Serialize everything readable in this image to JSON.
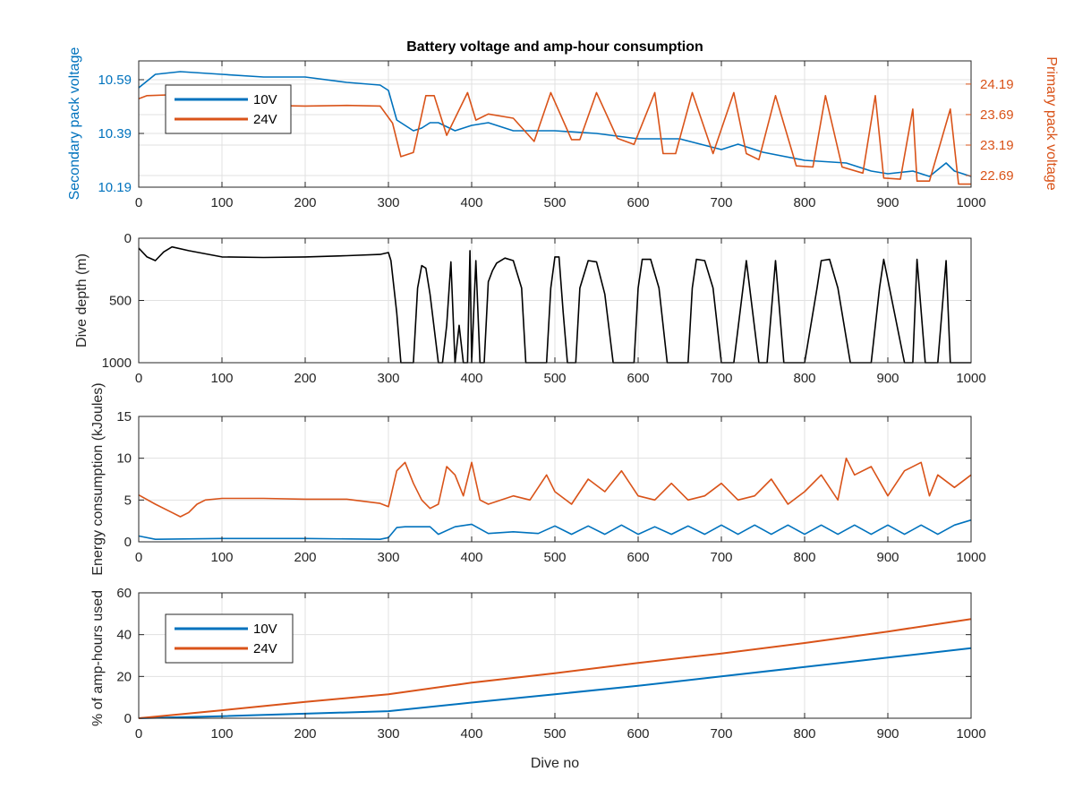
{
  "figure": {
    "title": "Battery voltage and amp-hour consumption",
    "colors": {
      "blue": "#0072BD",
      "orange": "#D95319",
      "black": "#000000",
      "grid": "#e1e1e1",
      "axis": "#262626"
    }
  },
  "chart_data": [
    {
      "id": "voltage",
      "type": "line",
      "title": "Battery voltage and amp-hour consumption",
      "xlabel": "",
      "ylabel": "Secondary pack voltage",
      "ylabel_right": "Primary pack voltage",
      "xlim": [
        0,
        1000
      ],
      "ylim": [
        10.19,
        10.66
      ],
      "ylim_right": [
        22.5,
        24.57
      ],
      "xticks": [
        "0",
        "100",
        "200",
        "300",
        "400",
        "500",
        "600",
        "700",
        "800",
        "900",
        "1000"
      ],
      "yticks": [
        "10.19",
        "10.39",
        "10.59"
      ],
      "yticks_right": [
        "22.69",
        "23.19",
        "23.69",
        "24.19"
      ],
      "grid": true,
      "legend": {
        "placement": "top-left",
        "entries": [
          "10V",
          "24V"
        ]
      },
      "series": [
        {
          "name": "10V",
          "axis": "left",
          "color": "#0072BD",
          "x": [
            0,
            20,
            50,
            100,
            150,
            200,
            250,
            290,
            300,
            310,
            320,
            330,
            340,
            350,
            360,
            380,
            400,
            420,
            450,
            500,
            550,
            600,
            650,
            700,
            720,
            750,
            800,
            850,
            880,
            900,
            930,
            950,
            970,
            980,
            1000
          ],
          "y": [
            10.56,
            10.61,
            10.62,
            10.61,
            10.6,
            10.6,
            10.58,
            10.57,
            10.55,
            10.44,
            10.42,
            10.4,
            10.41,
            10.43,
            10.43,
            10.4,
            10.42,
            10.43,
            10.4,
            10.4,
            10.39,
            10.37,
            10.37,
            10.33,
            10.35,
            10.32,
            10.29,
            10.28,
            10.25,
            10.24,
            10.25,
            10.23,
            10.28,
            10.25,
            10.23
          ]
        },
        {
          "name": "24V",
          "axis": "right",
          "color": "#D95319",
          "x": [
            0,
            10,
            50,
            100,
            150,
            200,
            250,
            290,
            305,
            315,
            330,
            345,
            355,
            370,
            395,
            405,
            420,
            450,
            475,
            495,
            520,
            530,
            550,
            575,
            595,
            620,
            630,
            645,
            665,
            690,
            715,
            730,
            745,
            765,
            790,
            810,
            825,
            845,
            870,
            885,
            895,
            915,
            930,
            935,
            950,
            975,
            985,
            990,
            1000
          ],
          "y": [
            23.95,
            24.0,
            24.02,
            23.85,
            23.84,
            23.83,
            23.84,
            23.83,
            23.55,
            23.0,
            23.07,
            24.0,
            24.0,
            23.35,
            24.05,
            23.6,
            23.7,
            23.63,
            23.25,
            24.05,
            23.28,
            23.28,
            24.05,
            23.3,
            23.2,
            24.05,
            23.05,
            23.05,
            24.05,
            23.05,
            24.05,
            23.05,
            22.95,
            24.0,
            22.85,
            22.83,
            24.0,
            22.83,
            22.73,
            24.0,
            22.65,
            22.63,
            23.78,
            22.6,
            22.6,
            23.78,
            22.55,
            22.55,
            22.55
          ]
        }
      ]
    },
    {
      "id": "depth",
      "type": "line",
      "xlabel": "",
      "ylabel": "Dive depth (m)",
      "xlim": [
        0,
        1000
      ],
      "ylim": [
        1000,
        0
      ],
      "reversed_y": true,
      "xticks": [
        "0",
        "100",
        "200",
        "300",
        "400",
        "500",
        "600",
        "700",
        "800",
        "900",
        "1000"
      ],
      "yticks": [
        "0",
        "500",
        "1000"
      ],
      "grid": true,
      "series": [
        {
          "name": "",
          "color": "#000000",
          "x": [
            0,
            10,
            20,
            30,
            40,
            60,
            100,
            150,
            200,
            250,
            290,
            300,
            303,
            310,
            315,
            320,
            330,
            335,
            340,
            345,
            350,
            360,
            365,
            370,
            375,
            380,
            385,
            390,
            395,
            398,
            400,
            403,
            405,
            410,
            415,
            420,
            425,
            430,
            440,
            450,
            460,
            465,
            470,
            490,
            495,
            500,
            505,
            510,
            515,
            525,
            530,
            540,
            550,
            560,
            570,
            595,
            600,
            605,
            615,
            625,
            635,
            645,
            660,
            665,
            670,
            680,
            690,
            700,
            715,
            730,
            745,
            755,
            765,
            775,
            800,
            815,
            820,
            830,
            840,
            855,
            880,
            890,
            895,
            920,
            930,
            935,
            945,
            960,
            970,
            975,
            990,
            1000
          ],
          "y": [
            80,
            150,
            180,
            110,
            70,
            100,
            150,
            155,
            150,
            140,
            130,
            115,
            180,
            600,
            1000,
            1000,
            1000,
            400,
            220,
            240,
            450,
            1000,
            1000,
            700,
            190,
            1000,
            700,
            1000,
            1000,
            100,
            1000,
            500,
            180,
            1000,
            1000,
            350,
            260,
            200,
            160,
            180,
            400,
            1000,
            1000,
            1000,
            400,
            150,
            150,
            600,
            1000,
            1000,
            400,
            180,
            190,
            450,
            1000,
            1000,
            400,
            170,
            170,
            400,
            1000,
            1000,
            1000,
            400,
            170,
            180,
            400,
            1000,
            1000,
            180,
            1000,
            1000,
            180,
            1000,
            1000,
            400,
            180,
            170,
            400,
            1000,
            1000,
            400,
            170,
            1000,
            1000,
            170,
            1000,
            1000,
            180,
            1000,
            1000,
            1000
          ]
        }
      ]
    },
    {
      "id": "energy",
      "type": "line",
      "xlabel": "",
      "ylabel": "Energy consumption (kJoules)",
      "xlim": [
        0,
        1000
      ],
      "ylim": [
        0,
        15
      ],
      "xticks": [
        "0",
        "100",
        "200",
        "300",
        "400",
        "500",
        "600",
        "700",
        "800",
        "900",
        "1000"
      ],
      "yticks": [
        "0",
        "5",
        "10",
        "15"
      ],
      "grid": true,
      "series": [
        {
          "name": "",
          "color": "#D95319",
          "x": [
            0,
            20,
            40,
            50,
            60,
            70,
            80,
            100,
            150,
            200,
            250,
            290,
            300,
            310,
            320,
            330,
            340,
            350,
            360,
            370,
            380,
            390,
            400,
            410,
            420,
            450,
            470,
            490,
            500,
            520,
            540,
            560,
            580,
            600,
            620,
            640,
            660,
            680,
            700,
            720,
            740,
            760,
            780,
            800,
            820,
            840,
            850,
            860,
            880,
            900,
            920,
            940,
            950,
            960,
            980,
            1000
          ],
          "y": [
            5.6,
            4.5,
            3.5,
            3.0,
            3.5,
            4.5,
            5.0,
            5.2,
            5.2,
            5.1,
            5.1,
            4.6,
            4.2,
            8.5,
            9.5,
            7.0,
            5.0,
            4.0,
            4.5,
            9.0,
            8.0,
            5.5,
            9.5,
            5.0,
            4.5,
            5.5,
            5.0,
            8.0,
            6.0,
            4.5,
            7.5,
            6.0,
            8.5,
            5.5,
            5.0,
            7.0,
            5.0,
            5.5,
            7.0,
            5.0,
            5.5,
            7.5,
            4.5,
            6.0,
            8.0,
            5.0,
            10.0,
            8.0,
            9.0,
            5.5,
            8.5,
            9.5,
            5.5,
            8.0,
            6.5,
            8.0
          ]
        },
        {
          "name": "",
          "color": "#0072BD",
          "x": [
            0,
            20,
            100,
            200,
            290,
            300,
            310,
            320,
            330,
            350,
            360,
            380,
            400,
            420,
            450,
            480,
            500,
            520,
            540,
            560,
            580,
            600,
            620,
            640,
            660,
            680,
            700,
            720,
            740,
            760,
            780,
            800,
            820,
            840,
            860,
            880,
            900,
            920,
            940,
            960,
            980,
            1000
          ],
          "y": [
            0.7,
            0.3,
            0.4,
            0.4,
            0.3,
            0.5,
            1.7,
            1.8,
            1.8,
            1.8,
            0.9,
            1.8,
            2.1,
            1.0,
            1.2,
            1.0,
            1.9,
            0.9,
            1.9,
            0.9,
            2.0,
            0.9,
            1.8,
            0.9,
            1.9,
            0.9,
            2.0,
            0.9,
            2.0,
            0.9,
            2.0,
            0.9,
            2.0,
            0.9,
            2.0,
            0.9,
            2.0,
            0.9,
            2.0,
            0.9,
            2.0,
            2.6
          ]
        }
      ]
    },
    {
      "id": "amphours",
      "type": "line",
      "xlabel": "Dive no",
      "ylabel": "% of amp-hours used",
      "xlim": [
        0,
        1000
      ],
      "ylim": [
        0,
        60
      ],
      "xticks": [
        "0",
        "100",
        "200",
        "300",
        "400",
        "500",
        "600",
        "700",
        "800",
        "900",
        "1000"
      ],
      "yticks": [
        "0",
        "20",
        "40",
        "60"
      ],
      "grid": true,
      "legend": {
        "placement": "top-left",
        "entries": [
          "10V",
          "24V"
        ]
      },
      "series": [
        {
          "name": "10V",
          "color": "#0072BD",
          "x": [
            0,
            100,
            200,
            300,
            400,
            500,
            600,
            700,
            800,
            900,
            1000
          ],
          "y": [
            0,
            1.0,
            2.2,
            3.4,
            7.5,
            11.5,
            15.5,
            20.0,
            24.5,
            29.0,
            33.5
          ]
        },
        {
          "name": "24V",
          "color": "#D95319",
          "x": [
            0,
            100,
            200,
            300,
            400,
            500,
            600,
            700,
            800,
            900,
            1000
          ],
          "y": [
            0,
            3.8,
            7.8,
            11.5,
            17.0,
            21.5,
            26.5,
            31.0,
            36.0,
            41.5,
            47.5
          ]
        }
      ]
    }
  ]
}
